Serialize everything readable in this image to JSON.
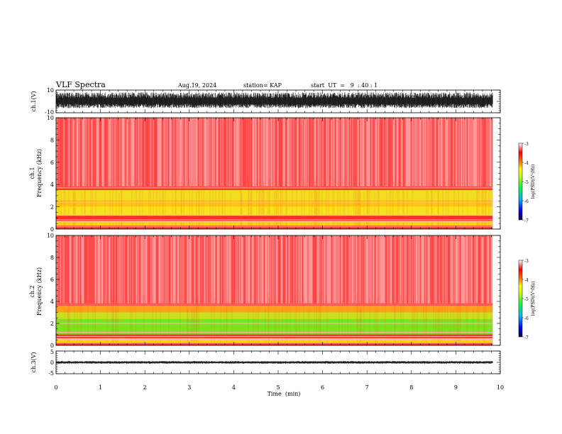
{
  "header": {
    "title": "VLF Spectra",
    "date": "Aug.19, 2024",
    "station": "station= KAP",
    "start": "start  UT  =   9  : 40 : 1"
  },
  "chart_data": [
    {
      "type": "line",
      "name": "ch1-waveform",
      "ylabel": "ch.1(V)",
      "ylim": [
        -10,
        10
      ],
      "ytick_labels": [
        "10",
        "-10"
      ],
      "xlim": [
        0,
        10
      ],
      "data_extent_x": [
        0,
        9.83
      ],
      "amplitude_range": [
        -6,
        8
      ],
      "color": "#000000"
    },
    {
      "type": "heatmap",
      "name": "ch1-spectrogram",
      "ylabel_line1": "ch.1",
      "ylabel_line2": "Frequency  (kHz)",
      "ylim": [
        0,
        10
      ],
      "ytick_labels": [
        "0",
        "2",
        "4",
        "6",
        "8",
        "10"
      ],
      "xlim": [
        0,
        10
      ],
      "data_extent_x": [
        0,
        9.83
      ],
      "bands": [
        {
          "f0": 0,
          "f1": 0.3,
          "color": "#ff3030"
        },
        {
          "f0": 0.3,
          "f1": 0.75,
          "color": "#ffd21e"
        },
        {
          "f0": 0.75,
          "f1": 1.2,
          "color": "#ff2a2a"
        },
        {
          "f0": 1.2,
          "f1": 2.0,
          "color": "#f5e31c"
        },
        {
          "f0": 2.0,
          "f1": 2.6,
          "color": "#ffc41c"
        },
        {
          "f0": 2.6,
          "f1": 3.5,
          "color": "#f2dd22"
        },
        {
          "f0": 3.5,
          "f1": 3.8,
          "color": "#ff3a2a"
        },
        {
          "f0": 3.8,
          "f1": 10,
          "color": "#ff5a5a"
        }
      ],
      "lines_khz": [
        0.2,
        0.65,
        0.85,
        1.25,
        2.0,
        2.4,
        3.7
      ],
      "colorbar": {
        "label": "log(PSD)(V²/Hz)",
        "range": [
          -7,
          -3
        ],
        "tick_labels": [
          "-3",
          "-4",
          "-5",
          "-6",
          "-7"
        ]
      }
    },
    {
      "type": "heatmap",
      "name": "ch2-spectrogram",
      "ylabel_line1": "ch.2",
      "ylabel_line2": "Frequency  (kHz)",
      "ylim": [
        0,
        10
      ],
      "ytick_labels": [
        "0",
        "2",
        "4",
        "6",
        "8",
        "10"
      ],
      "xlim": [
        0,
        10
      ],
      "data_extent_x": [
        0,
        9.83
      ],
      "bands": [
        {
          "f0": 0,
          "f1": 0.25,
          "color": "#ff3030"
        },
        {
          "f0": 0.25,
          "f1": 0.65,
          "color": "#ffd21e"
        },
        {
          "f0": 0.65,
          "f1": 1.0,
          "color": "#ff3a2a"
        },
        {
          "f0": 1.0,
          "f1": 2.4,
          "color": "#7ee31e"
        },
        {
          "f0": 2.4,
          "f1": 3.0,
          "color": "#c8e01e"
        },
        {
          "f0": 3.0,
          "f1": 3.6,
          "color": "#ffa01e"
        },
        {
          "f0": 3.6,
          "f1": 10,
          "color": "#ff5a5a"
        }
      ],
      "lines_khz": [
        0.2,
        0.55,
        0.8,
        1.2,
        2.0
      ],
      "colorbar": {
        "label": "log(PSD)(V²/Hz)",
        "range": [
          -7,
          -3
        ],
        "tick_labels": [
          "-3",
          "-4",
          "-5",
          "-6",
          "-7"
        ]
      }
    },
    {
      "type": "line",
      "name": "ch3-waveform",
      "ylabel": "ch.3(V)",
      "ylim": [
        -5,
        5
      ],
      "ytick_labels": [
        "5",
        "0",
        "-5"
      ],
      "xlim": [
        0,
        10
      ],
      "data_extent_x": [
        0,
        9.83
      ],
      "amplitude_range": [
        -0.6,
        0.6
      ],
      "color": "#000000",
      "xlabel": "Time  (min)",
      "xtick_labels": [
        "0",
        "1",
        "2",
        "3",
        "4",
        "5",
        "6",
        "7",
        "8",
        "9",
        "10"
      ]
    }
  ]
}
